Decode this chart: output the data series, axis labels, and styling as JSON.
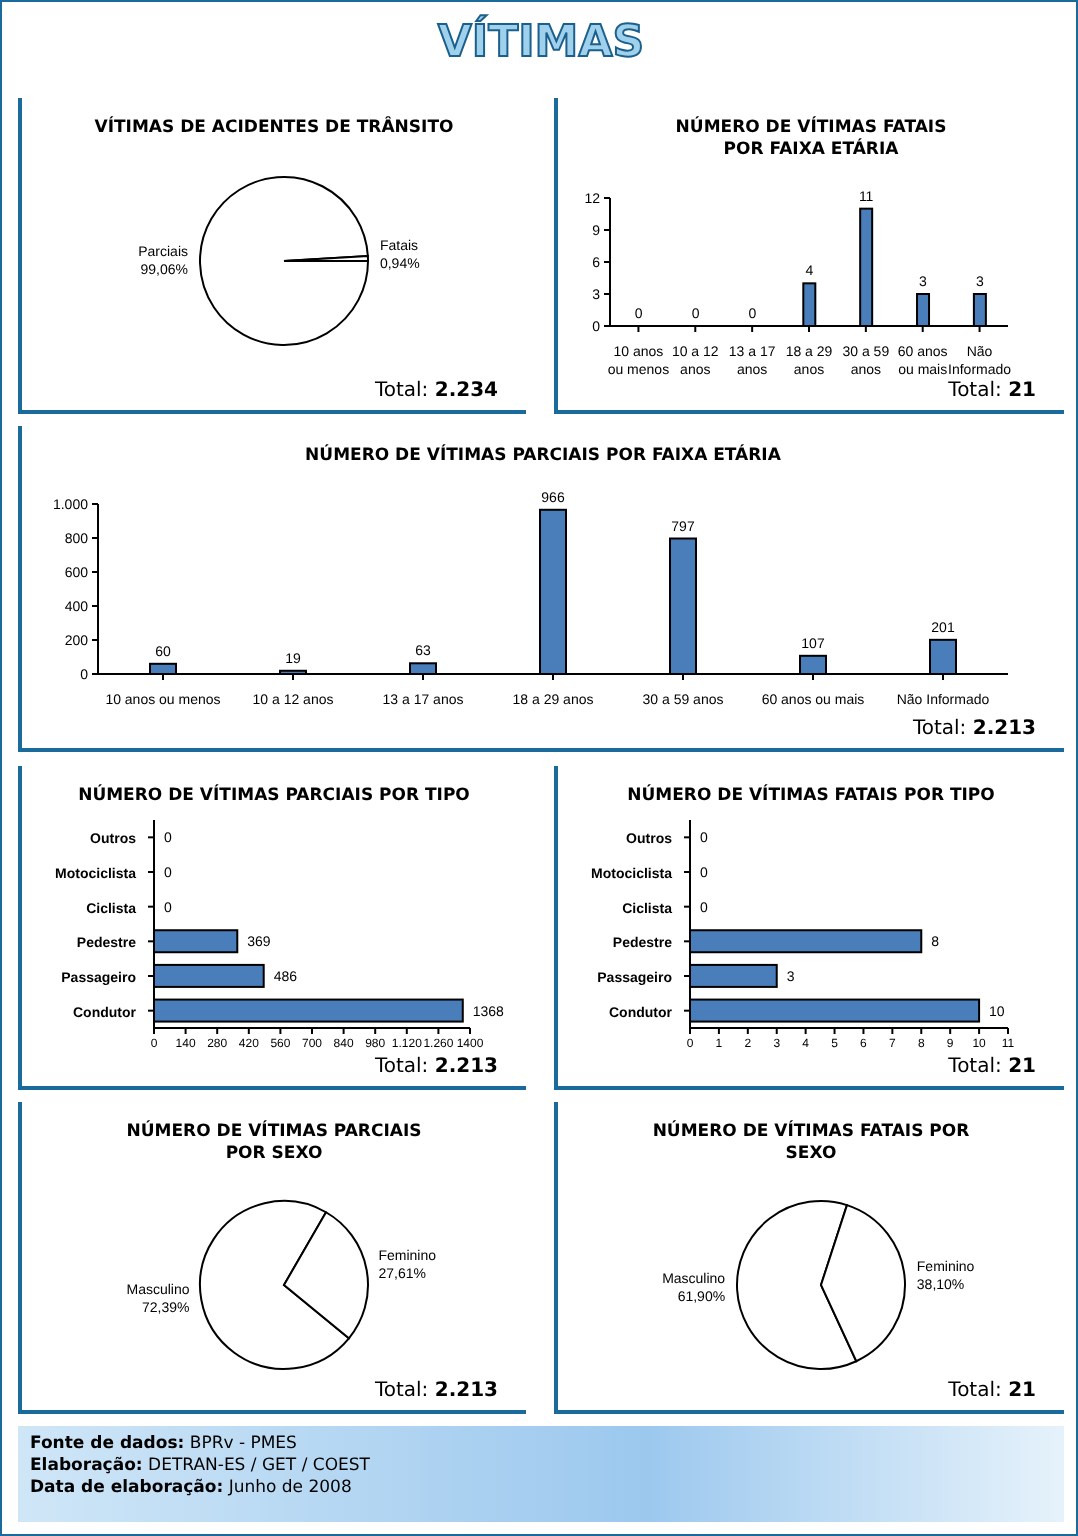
{
  "chart_data": [
    {
      "type": "other",
      "title": "VÍTIMAS"
    },
    {
      "type": "pie",
      "title": "VÍTIMAS DE ACIDENTES DE TRÂNSITO",
      "categories": [
        "Parciais",
        "Fatais"
      ],
      "values": [
        99.06,
        0.94
      ],
      "value_labels": [
        "99,06%",
        "0,94%"
      ],
      "colors": [
        "#ffffff",
        "#ffffff"
      ],
      "annotations": [
        "Total: 2.234"
      ]
    },
    {
      "type": "bar",
      "title": "NÚMERO DE VÍTIMAS FATAIS POR FAIXA ETÁRIA",
      "categories": [
        "10 anos ou menos",
        "10 a 12 anos",
        "13 a 17 anos",
        "18 a 29 anos",
        "30 a 59 anos",
        "60 anos ou mais",
        "Não Informado"
      ],
      "values": [
        0,
        0,
        0,
        4,
        11,
        3,
        3
      ],
      "color": "#4a7ebb",
      "ylim": [
        0,
        12
      ],
      "yticks": [
        0,
        3,
        6,
        9,
        12
      ],
      "data_labels": true,
      "annotations": [
        "Total: 21"
      ]
    },
    {
      "type": "bar",
      "title": "NÚMERO DE VÍTIMAS PARCIAIS POR FAIXA ETÁRIA",
      "categories": [
        "10 anos ou menos",
        "10 a 12 anos",
        "13 a 17 anos",
        "18 a 29 anos",
        "30 a 59 anos",
        "60 anos ou mais",
        "Não Informado"
      ],
      "values": [
        60,
        19,
        63,
        966,
        797,
        107,
        201
      ],
      "color": "#4a7ebb",
      "ylim": [
        0,
        1000
      ],
      "yticks": [
        0,
        200,
        400,
        600,
        800,
        {
          "value": 1000,
          "label": "1.000"
        }
      ],
      "data_labels": true,
      "annotations": [
        "Total: 2.213"
      ]
    },
    {
      "type": "bar",
      "orientation": "horizontal",
      "title": "NÚMERO DE VÍTIMAS PARCIAIS POR TIPO",
      "categories": [
        "Outros",
        "Motociclista",
        "Ciclista",
        "Pedestre",
        "Passageiro",
        "Condutor"
      ],
      "values": [
        0,
        0,
        0,
        369,
        486,
        1368
      ],
      "color": "#4a7ebb",
      "xlim": [
        0,
        1400
      ],
      "xticks": [
        0,
        140,
        280,
        420,
        560,
        700,
        840,
        980,
        {
          "value": 1120,
          "label": "1.120"
        },
        {
          "value": 1260,
          "label": "1.260"
        },
        1400
      ],
      "data_labels": true,
      "annotations": [
        "Total: 2.213"
      ]
    },
    {
      "type": "bar",
      "orientation": "horizontal",
      "title": "NÚMERO DE VÍTIMAS FATAIS POR TIPO",
      "categories": [
        "Outros",
        "Motociclista",
        "Ciclista",
        "Pedestre",
        "Passageiro",
        "Condutor"
      ],
      "values": [
        0,
        0,
        0,
        8,
        3,
        10
      ],
      "color": "#4a7ebb",
      "xlim": [
        0,
        11
      ],
      "xticks": [
        0,
        1,
        2,
        3,
        4,
        5,
        6,
        7,
        8,
        9,
        10,
        11
      ],
      "data_labels": true,
      "annotations": [
        "Total: 21"
      ]
    },
    {
      "type": "pie",
      "title": "NÚMERO DE VÍTIMAS PARCIAIS POR SEXO",
      "categories": [
        "Masculino",
        "Feminino"
      ],
      "values": [
        72.39,
        27.61
      ],
      "value_labels": [
        "72,39%",
        "27,61%"
      ],
      "colors": [
        "#ffffff",
        "#ffffff"
      ],
      "annotations": [
        "Total: 2.213"
      ]
    },
    {
      "type": "pie",
      "title": "NÚMERO DE VÍTIMAS FATAIS POR SEXO",
      "categories": [
        "Masculino",
        "Feminino"
      ],
      "values": [
        61.9,
        38.1
      ],
      "value_labels": [
        "61,90%",
        "38,10%"
      ],
      "colors": [
        "#ffffff",
        "#ffffff"
      ],
      "annotations": [
        "Total: 21"
      ]
    },
    {
      "type": "other",
      "annotations": [
        "Fonte de dados: BPRv - PMES",
        "Elaboração: DETRAN-ES / GET / COEST",
        "Data de elaboração: Junho de 2008"
      ]
    }
  ]
}
